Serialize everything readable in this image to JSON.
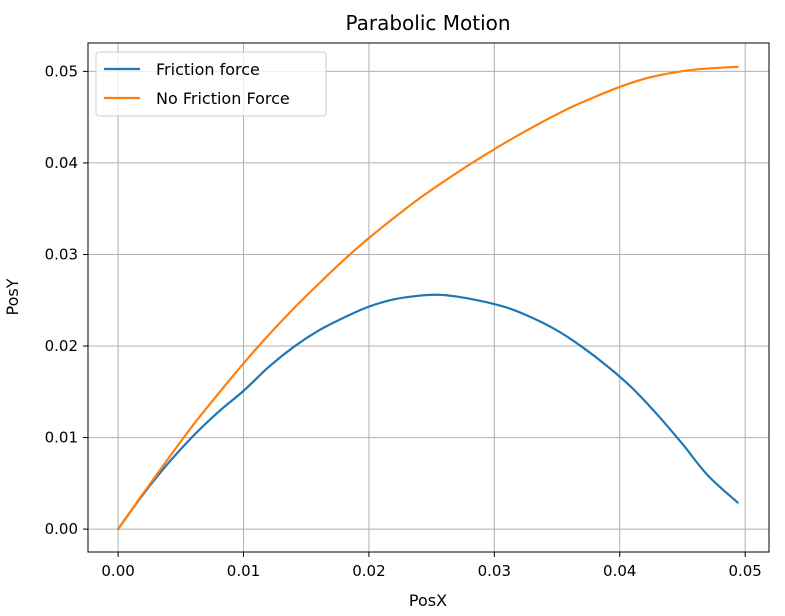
{
  "chart_data": {
    "type": "line",
    "title": "Parabolic Motion",
    "xlabel": "PosX",
    "ylabel": "PosY",
    "xlim": [
      -0.0024,
      0.0519
    ],
    "ylim": [
      -0.0025,
      0.0531
    ],
    "xticks": [
      0.0,
      0.01,
      0.02,
      0.03,
      0.04,
      0.05
    ],
    "xtick_labels": [
      "0.00",
      "0.01",
      "0.02",
      "0.03",
      "0.04",
      "0.05"
    ],
    "yticks": [
      0.0,
      0.01,
      0.02,
      0.03,
      0.04,
      0.05
    ],
    "ytick_labels": [
      "0.00",
      "0.01",
      "0.02",
      "0.03",
      "0.04",
      "0.05"
    ],
    "grid": true,
    "legend_placement": "top-left",
    "series": [
      {
        "name": "Friction force",
        "color": "#1f77b4",
        "x": [
          0.0,
          0.002,
          0.004,
          0.006,
          0.008,
          0.01,
          0.012,
          0.014,
          0.016,
          0.018,
          0.02,
          0.022,
          0.024,
          0.0255,
          0.027,
          0.029,
          0.031,
          0.033,
          0.035,
          0.037,
          0.039,
          0.041,
          0.043,
          0.045,
          0.047,
          0.0494
        ],
        "y": [
          0.0,
          0.0038,
          0.0072,
          0.0102,
          0.0128,
          0.0151,
          0.0177,
          0.0199,
          0.0217,
          0.0231,
          0.0243,
          0.0251,
          0.0255,
          0.0256,
          0.0254,
          0.0249,
          0.0242,
          0.0231,
          0.0217,
          0.0199,
          0.0178,
          0.0154,
          0.0125,
          0.0093,
          0.0059,
          0.0029
        ]
      },
      {
        "name": "No Friction Force",
        "color": "#ff7f0e",
        "x": [
          0.0,
          0.002,
          0.004,
          0.006,
          0.008,
          0.01,
          0.012,
          0.014,
          0.016,
          0.018,
          0.02,
          0.022,
          0.024,
          0.026,
          0.028,
          0.03,
          0.032,
          0.034,
          0.036,
          0.038,
          0.04,
          0.042,
          0.044,
          0.046,
          0.048,
          0.0494
        ],
        "y": [
          0.0,
          0.0039,
          0.0077,
          0.0114,
          0.0148,
          0.0181,
          0.0212,
          0.0241,
          0.0268,
          0.0294,
          0.0318,
          0.034,
          0.0361,
          0.038,
          0.0398,
          0.0415,
          0.0431,
          0.0446,
          0.046,
          0.0472,
          0.0483,
          0.0492,
          0.0498,
          0.0502,
          0.0504,
          0.0505
        ]
      }
    ]
  }
}
